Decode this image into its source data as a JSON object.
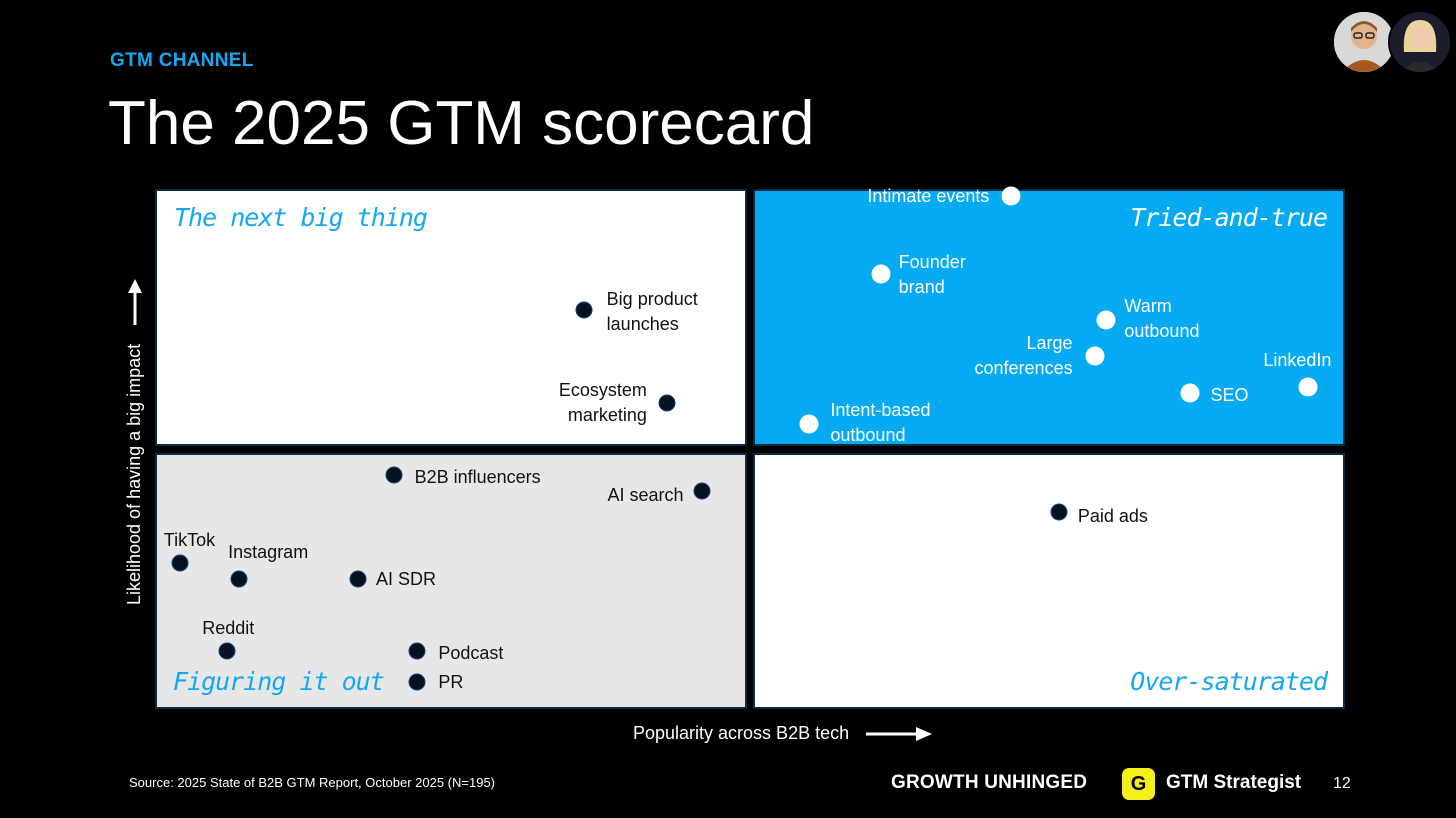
{
  "header": {
    "kicker": "GTM CHANNEL",
    "title": "The 2025 GTM scorecard"
  },
  "chart_data": {
    "type": "scatter",
    "subtype": "quadrant",
    "xlabel": "Popularity across B2B tech",
    "ylabel": "Likelihood of having a big impact",
    "xlim": [
      0,
      100
    ],
    "ylim": [
      0,
      100
    ],
    "quadrants": [
      {
        "id": "q-tl",
        "position": "top-left",
        "label": "The next big thing"
      },
      {
        "id": "q-tr",
        "position": "top-right",
        "label": "Tried-and-true"
      },
      {
        "id": "q-bl",
        "position": "bottom-left",
        "label": "Figuring it out"
      },
      {
        "id": "q-br",
        "position": "bottom-right",
        "label": "Over-saturated"
      }
    ],
    "points": [
      {
        "label": "Intimate events",
        "x": 72,
        "y": 99
      },
      {
        "label": "Founder brand",
        "x": 61,
        "y": 84
      },
      {
        "label": "Warm outbound",
        "x": 80,
        "y": 75
      },
      {
        "label": "Large conferences",
        "x": 79,
        "y": 68
      },
      {
        "label": "LinkedIn",
        "x": 97,
        "y": 62
      },
      {
        "label": "SEO",
        "x": 87,
        "y": 61
      },
      {
        "label": "Intent-based outbound",
        "x": 55,
        "y": 55
      },
      {
        "label": "Big product launches",
        "x": 36,
        "y": 77
      },
      {
        "label": "Ecosystem marketing",
        "x": 43,
        "y": 59
      },
      {
        "label": "B2B influencers",
        "x": 20,
        "y": 45
      },
      {
        "label": "AI search",
        "x": 46,
        "y": 42
      },
      {
        "label": "Paid ads",
        "x": 76,
        "y": 38
      },
      {
        "label": "TikTok",
        "x": 2,
        "y": 28
      },
      {
        "label": "Instagram",
        "x": 7,
        "y": 25
      },
      {
        "label": "AI SDR",
        "x": 17,
        "y": 25
      },
      {
        "label": "Reddit",
        "x": 6,
        "y": 11
      },
      {
        "label": "Podcast",
        "x": 22,
        "y": 11
      },
      {
        "label": "PR",
        "x": 22,
        "y": 5
      }
    ]
  },
  "footer": {
    "source": "Source: 2025 State of B2B GTM Report, October 2025 (N=195)",
    "brand_primary": "GROWTH UNHINGED",
    "badge_letter": "G",
    "brand_secondary": "GTM Strategist",
    "page_number": "12"
  },
  "colors": {
    "accent": "#14a8f0",
    "tried_true_fill": "#06aaf2",
    "figuring_fill": "#e7e7e7",
    "badge": "#f7ef1c"
  }
}
